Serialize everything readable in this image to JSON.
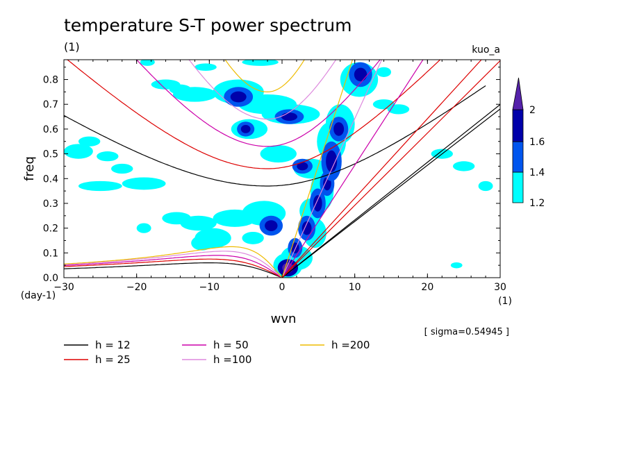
{
  "chart_data": {
    "type": "heatmap",
    "title": "temperature S-T power spectrum",
    "subtitle_units": "(1)",
    "dataset": "kuo_a",
    "xlabel": "wvn",
    "xunits": "(1)",
    "ylabel": "freq",
    "yunits": "(day-1)",
    "xlim": [
      -30,
      30
    ],
    "ylim": [
      0,
      0.88
    ],
    "x_ticks": [
      -30,
      -20,
      -10,
      0,
      10,
      20,
      30
    ],
    "x_tick_labels": [
      "−30",
      "−20",
      "−10",
      "0",
      "10",
      "20",
      "30"
    ],
    "y_ticks": [
      0,
      0.1,
      0.2,
      0.3,
      0.4,
      0.5,
      0.6,
      0.7,
      0.8
    ],
    "y_tick_labels": [
      "0.0",
      "0.1",
      "0.2",
      "0.3",
      "0.4",
      "0.5",
      "0.6",
      "0.7",
      "0.8"
    ],
    "sigma_text": "[ sigma=0.54945 ]",
    "colorbar": {
      "levels": [
        1.2,
        1.4,
        1.6,
        2
      ],
      "labels": [
        "1.2",
        "1.4",
        "1.6",
        "2"
      ],
      "colors": [
        "#00ffff",
        "#0055ee",
        "#0000aa",
        "#5522aa"
      ]
    },
    "dispersion_curves": [
      {
        "label": "h = 12",
        "h": 12,
        "color": "#000000"
      },
      {
        "label": "h = 25",
        "h": 25,
        "color": "#dd0000"
      },
      {
        "label": "h = 50",
        "h": 50,
        "color": "#cc00aa"
      },
      {
        "label": "h =100",
        "h": 100,
        "color": "#dd88dd"
      },
      {
        "label": "h =200",
        "h": 200,
        "color": "#eebb00"
      }
    ],
    "features": {
      "er_peak_freq": [
        0.06,
        0.075,
        0.09,
        0.107,
        0.125
      ],
      "er_peak_wvn": [
        -10,
        -10,
        -9,
        -8,
        -7
      ],
      "ig_min_freq": [
        0.37,
        0.44,
        0.53,
        0.64,
        0.75
      ],
      "kelvin_slope_per_wvn": [
        0.0227,
        0.0321,
        0.0454,
        0.0642,
        0.0908
      ],
      "ig_pos_slope_per_wvn": [
        0.0227,
        0.0321,
        0.0454,
        0.0642,
        0.0908
      ],
      "ig_neg_slope_per_wvn": [
        0.0193,
        0.0277,
        0.039,
        0.056,
        0.079
      ]
    },
    "blobs": [
      {
        "x": 0.8,
        "y": 0.04,
        "rx": 1.4,
        "ry": 0.035,
        "level": 3
      },
      {
        "x": 1.8,
        "y": 0.12,
        "rx": 1.0,
        "ry": 0.04,
        "level": 2
      },
      {
        "x": 3.4,
        "y": 0.2,
        "rx": 1.2,
        "ry": 0.05,
        "level": 2
      },
      {
        "x": 4.9,
        "y": 0.3,
        "rx": 1.1,
        "ry": 0.06,
        "level": 2
      },
      {
        "x": 6.2,
        "y": 0.38,
        "rx": 1.0,
        "ry": 0.05,
        "level": 2
      },
      {
        "x": 2.8,
        "y": 0.45,
        "rx": 1.4,
        "ry": 0.03,
        "level": 2
      },
      {
        "x": 6.8,
        "y": 0.47,
        "rx": 1.4,
        "ry": 0.08,
        "level": 2
      },
      {
        "x": 7.8,
        "y": 0.6,
        "rx": 1.3,
        "ry": 0.05,
        "level": 2
      },
      {
        "x": 10.8,
        "y": 0.82,
        "rx": 1.6,
        "ry": 0.05,
        "level": 2
      },
      {
        "x": -6.0,
        "y": 0.73,
        "rx": 2.0,
        "ry": 0.04,
        "level": 2
      },
      {
        "x": -5.0,
        "y": 0.6,
        "rx": 1.2,
        "ry": 0.03,
        "level": 2
      },
      {
        "x": 1.0,
        "y": 0.65,
        "rx": 2.0,
        "ry": 0.03,
        "level": 2
      },
      {
        "x": -1.5,
        "y": 0.21,
        "rx": 1.6,
        "ry": 0.04,
        "level": 2
      },
      {
        "x": 4.5,
        "y": 0.18,
        "rx": 1.6,
        "ry": 0.06,
        "level": 1
      },
      {
        "x": 4.0,
        "y": 0.27,
        "rx": 1.6,
        "ry": 0.05,
        "level": 1
      },
      {
        "x": 2.0,
        "y": 0.08,
        "rx": 2.2,
        "ry": 0.05,
        "level": 1
      },
      {
        "x": 6.8,
        "y": 0.55,
        "rx": 2.0,
        "ry": 0.08,
        "level": 1
      },
      {
        "x": 8.0,
        "y": 0.62,
        "rx": 2.0,
        "ry": 0.08,
        "level": 1
      },
      {
        "x": 10.6,
        "y": 0.8,
        "rx": 2.6,
        "ry": 0.07,
        "level": 1
      },
      {
        "x": 4.0,
        "y": 0.44,
        "rx": 2.4,
        "ry": 0.04,
        "level": 1
      },
      {
        "x": 5.5,
        "y": 0.35,
        "rx": 1.6,
        "ry": 0.08,
        "level": 1
      },
      {
        "x": 0.8,
        "y": 0.05,
        "rx": 2.0,
        "ry": 0.05,
        "level": 1
      },
      {
        "x": -6.0,
        "y": 0.75,
        "rx": 3.5,
        "ry": 0.05,
        "level": 1
      },
      {
        "x": -2.0,
        "y": 0.7,
        "rx": 4.0,
        "ry": 0.04,
        "level": 1
      },
      {
        "x": 1.2,
        "y": 0.66,
        "rx": 4.0,
        "ry": 0.04,
        "level": 1
      },
      {
        "x": -4.5,
        "y": 0.6,
        "rx": 2.5,
        "ry": 0.04,
        "level": 1
      },
      {
        "x": -12.0,
        "y": 0.74,
        "rx": 3.0,
        "ry": 0.03,
        "level": 1
      },
      {
        "x": -16.0,
        "y": 0.78,
        "rx": 2.0,
        "ry": 0.02,
        "level": 1
      },
      {
        "x": -0.5,
        "y": 0.5,
        "rx": 2.5,
        "ry": 0.035,
        "level": 1
      },
      {
        "x": -2.5,
        "y": 0.26,
        "rx": 3.0,
        "ry": 0.05,
        "level": 1
      },
      {
        "x": -6.5,
        "y": 0.24,
        "rx": 3.0,
        "ry": 0.035,
        "level": 1
      },
      {
        "x": -11.5,
        "y": 0.22,
        "rx": 2.5,
        "ry": 0.03,
        "level": 1
      },
      {
        "x": -14.5,
        "y": 0.24,
        "rx": 2.0,
        "ry": 0.025,
        "level": 1
      },
      {
        "x": -9.5,
        "y": 0.16,
        "rx": 2.5,
        "ry": 0.04,
        "level": 1
      },
      {
        "x": -11.0,
        "y": 0.14,
        "rx": 1.5,
        "ry": 0.03,
        "level": 1
      },
      {
        "x": -4.0,
        "y": 0.16,
        "rx": 1.5,
        "ry": 0.025,
        "level": 1
      },
      {
        "x": -19.0,
        "y": 0.38,
        "rx": 3.0,
        "ry": 0.025,
        "level": 1
      },
      {
        "x": -25.0,
        "y": 0.37,
        "rx": 3.0,
        "ry": 0.02,
        "level": 1
      },
      {
        "x": -28.0,
        "y": 0.51,
        "rx": 2.0,
        "ry": 0.03,
        "level": 1
      },
      {
        "x": -26.5,
        "y": 0.55,
        "rx": 1.5,
        "ry": 0.02,
        "level": 1
      },
      {
        "x": -24.0,
        "y": 0.49,
        "rx": 1.5,
        "ry": 0.02,
        "level": 1
      },
      {
        "x": -22.0,
        "y": 0.44,
        "rx": 1.5,
        "ry": 0.02,
        "level": 1
      },
      {
        "x": -19.0,
        "y": 0.2,
        "rx": 1.0,
        "ry": 0.02,
        "level": 1
      },
      {
        "x": -14.0,
        "y": 0.76,
        "rx": 1.5,
        "ry": 0.02,
        "level": 1
      },
      {
        "x": -10.5,
        "y": 0.85,
        "rx": 1.5,
        "ry": 0.015,
        "level": 1
      },
      {
        "x": -18.5,
        "y": 0.87,
        "rx": 1.0,
        "ry": 0.015,
        "level": 1
      },
      {
        "x": -3.0,
        "y": 0.87,
        "rx": 2.5,
        "ry": 0.015,
        "level": 1
      },
      {
        "x": 14.0,
        "y": 0.7,
        "rx": 1.5,
        "ry": 0.02,
        "level": 1
      },
      {
        "x": 16.0,
        "y": 0.68,
        "rx": 1.5,
        "ry": 0.02,
        "level": 1
      },
      {
        "x": 22.0,
        "y": 0.5,
        "rx": 1.5,
        "ry": 0.02,
        "level": 1
      },
      {
        "x": 25.0,
        "y": 0.45,
        "rx": 1.5,
        "ry": 0.02,
        "level": 1
      },
      {
        "x": 28.0,
        "y": 0.37,
        "rx": 1.0,
        "ry": 0.02,
        "level": 1
      },
      {
        "x": 24.0,
        "y": 0.05,
        "rx": 0.8,
        "ry": 0.012,
        "level": 1
      },
      {
        "x": 14.0,
        "y": 0.83,
        "rx": 1.0,
        "ry": 0.02,
        "level": 1
      }
    ]
  }
}
